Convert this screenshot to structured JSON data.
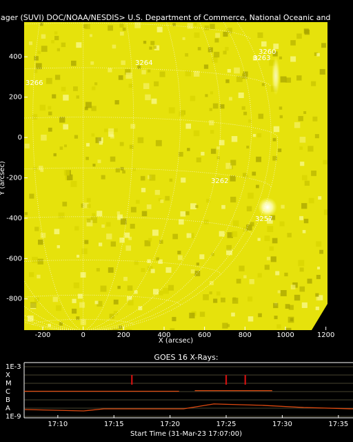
{
  "chart_data": [
    {
      "type": "image",
      "title": "nager (SUVI) DOC/NOAA/NESDIS> U.S. Department of Commerce, National Oceanic and",
      "xlabel": "X (arcsec)",
      "ylabel": "Y (arcsec)",
      "xlim": [
        -292,
        1208
      ],
      "ylim": [
        -955,
        572
      ],
      "xticks": [
        -200,
        0,
        200,
        400,
        600,
        800,
        1000,
        1200
      ],
      "yticks": [
        -800,
        -600,
        -400,
        -200,
        0,
        200,
        400
      ],
      "annotations": [
        "3260",
        "3263",
        "3264",
        "3266",
        "3262",
        "3257"
      ],
      "color": "#e6e20c"
    },
    {
      "type": "line",
      "title": "GOES 16 X-Rays:",
      "xlabel": "Start Time (31-Mar-23 17:07:00)",
      "log_y": true,
      "grid": true,
      "xlim": [
        7,
        36.3
      ],
      "ylim": [
        1e-09,
        0.001
      ],
      "xticks": [
        {
          "value": 10,
          "label": "17:10"
        },
        {
          "value": 15,
          "label": "17:15"
        },
        {
          "value": 20,
          "label": "17:20"
        },
        {
          "value": 25,
          "label": "17:25"
        },
        {
          "value": 30,
          "label": "17:30"
        },
        {
          "value": 35,
          "label": "17:35"
        }
      ],
      "yticks": [
        {
          "value": 0.001,
          "label": "1E-3"
        },
        {
          "value": 0.0001,
          "label": "X"
        },
        {
          "value": 1e-05,
          "label": "M"
        },
        {
          "value": 1e-06,
          "label": "C"
        },
        {
          "value": 1e-07,
          "label": "B"
        },
        {
          "value": 1e-08,
          "label": "A"
        },
        {
          "value": 1e-09,
          "label": "1E-9"
        }
      ],
      "series": [
        {
          "color": "#e04a10",
          "x": [
            7,
            20.8,
            21.5,
            22.2,
            29.1
          ],
          "values": [
            1.1e-06,
            1.1e-06,
            null,
            1.3e-06,
            1.3e-06
          ]
        },
        {
          "color": "#e04a10",
          "x": [
            7.06,
            12.3,
            14.1,
            21.2,
            23.9,
            28.2,
            31.9,
            36.3
          ],
          "values": [
            6.8e-09,
            4.6e-09,
            8.3e-09,
            8.3e-09,
            3.2e-08,
            2.2e-08,
            1.2e-08,
            8.3e-09
          ]
        }
      ],
      "events": {
        "x": [
          16.6,
          25.0,
          26.7
        ],
        "color": "#d01010"
      }
    }
  ]
}
